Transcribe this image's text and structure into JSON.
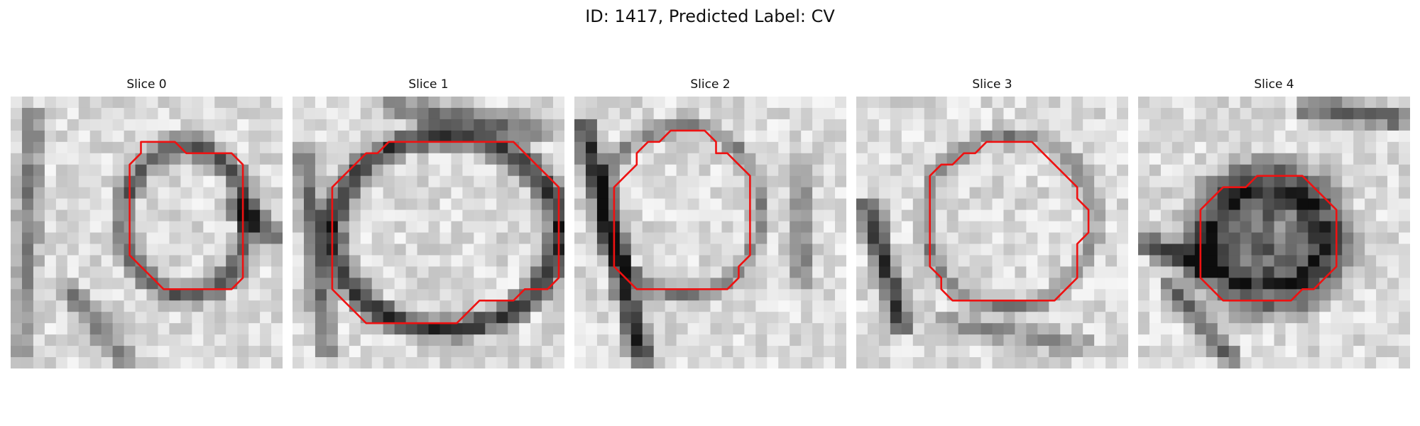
{
  "figure": {
    "title": "ID: 1417, Predicted Label: CV"
  },
  "panels": [
    {
      "title": "Slice 0",
      "contour_color": "#ee1111",
      "contour": [
        [
          11.5,
          4
        ],
        [
          14.5,
          4
        ],
        [
          15.5,
          5
        ],
        [
          19.5,
          5
        ],
        [
          20.5,
          6
        ],
        [
          20.5,
          16
        ],
        [
          19.5,
          17
        ],
        [
          13.5,
          17
        ],
        [
          12.5,
          16
        ],
        [
          11.5,
          15
        ],
        [
          10.5,
          14
        ],
        [
          10.5,
          6
        ],
        [
          11.5,
          5
        ]
      ]
    },
    {
      "title": "Slice 1",
      "contour_color": "#ee1111",
      "contour": [
        [
          8.5,
          4
        ],
        [
          19.5,
          4
        ],
        [
          20.5,
          5
        ],
        [
          21.5,
          6
        ],
        [
          22.5,
          7
        ],
        [
          23.5,
          8
        ],
        [
          23.5,
          16
        ],
        [
          22.5,
          17
        ],
        [
          20.5,
          17
        ],
        [
          19.5,
          18
        ],
        [
          16.5,
          18
        ],
        [
          15.5,
          19
        ],
        [
          14.5,
          20
        ],
        [
          6.5,
          20
        ],
        [
          5.5,
          19
        ],
        [
          4.5,
          18
        ],
        [
          3.5,
          17
        ],
        [
          3.5,
          8
        ],
        [
          4.5,
          7
        ],
        [
          5.5,
          6
        ],
        [
          6.5,
          5
        ],
        [
          7.5,
          5
        ]
      ]
    },
    {
      "title": "Slice 2",
      "contour_color": "#ee1111",
      "contour": [
        [
          8.5,
          3
        ],
        [
          11.5,
          3
        ],
        [
          12.5,
          4
        ],
        [
          12.5,
          5
        ],
        [
          13.5,
          5
        ],
        [
          14.5,
          6
        ],
        [
          15.5,
          7
        ],
        [
          15.5,
          14
        ],
        [
          14.5,
          15
        ],
        [
          14.5,
          16
        ],
        [
          13.5,
          17
        ],
        [
          5.5,
          17
        ],
        [
          4.5,
          16
        ],
        [
          3.5,
          15
        ],
        [
          3.5,
          8
        ],
        [
          4.5,
          7
        ],
        [
          5.5,
          6
        ],
        [
          5.5,
          5
        ],
        [
          6.5,
          4
        ],
        [
          7.5,
          4
        ]
      ]
    },
    {
      "title": "Slice 3",
      "contour_color": "#ee1111",
      "contour": [
        [
          11.5,
          4
        ],
        [
          15.5,
          4
        ],
        [
          16.5,
          5
        ],
        [
          17.5,
          6
        ],
        [
          18.5,
          7
        ],
        [
          19.5,
          8
        ],
        [
          19.5,
          9
        ],
        [
          20.5,
          10
        ],
        [
          20.5,
          12
        ],
        [
          19.5,
          13
        ],
        [
          19.5,
          16
        ],
        [
          18.5,
          17
        ],
        [
          17.5,
          18
        ],
        [
          8.5,
          18
        ],
        [
          7.5,
          17
        ],
        [
          7.5,
          16
        ],
        [
          6.5,
          15
        ],
        [
          6.5,
          7
        ],
        [
          7.5,
          6
        ],
        [
          8.5,
          6
        ],
        [
          9.5,
          5
        ],
        [
          10.5,
          5
        ]
      ]
    },
    {
      "title": "Slice 4",
      "contour_color": "#ee1111",
      "contour": [
        [
          11.5,
          7
        ],
        [
          14.5,
          7
        ],
        [
          15.5,
          8
        ],
        [
          16.5,
          9
        ],
        [
          17.5,
          10
        ],
        [
          17.5,
          15
        ],
        [
          16.5,
          16
        ],
        [
          15.5,
          17
        ],
        [
          14.5,
          17
        ],
        [
          13.5,
          18
        ],
        [
          7.5,
          18
        ],
        [
          6.5,
          17
        ],
        [
          5.5,
          16
        ],
        [
          5.5,
          12
        ],
        [
          5.5,
          10
        ],
        [
          6.5,
          9
        ],
        [
          7.5,
          8
        ],
        [
          8.5,
          8
        ],
        [
          9.5,
          8
        ],
        [
          10.5,
          7
        ]
      ]
    }
  ]
}
